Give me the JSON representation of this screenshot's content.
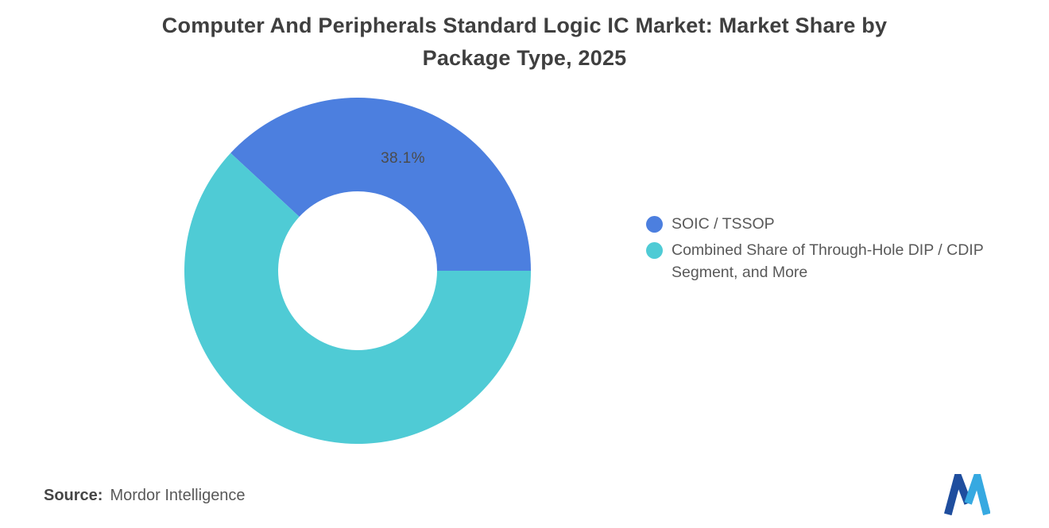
{
  "title": {
    "line1": "Computer And Peripherals Standard Logic IC Market: Market Share by",
    "line2": "Package Type, 2025"
  },
  "source": {
    "label": "Source:",
    "value": "Mordor Intelligence"
  },
  "chart_data": {
    "type": "pie",
    "subtype": "donut",
    "title": "Computer And Peripherals Standard Logic IC Market: Market Share by Package Type, 2025",
    "series": [
      {
        "name": "SOIC / TSSOP",
        "value": 38.1,
        "label": "38.1%",
        "color": "#4c7fdf"
      },
      {
        "name": "Combined Share of Through-Hole DIP / CDIP Segment, and More",
        "value": 61.9,
        "label": "",
        "color": "#4fcbd5"
      }
    ],
    "legend_position": "right",
    "rotation_deg": -47.16,
    "inner_radius_frac": 0.46,
    "data_labels_shown": [
      "38.1%"
    ]
  },
  "logo": {
    "name": "mordor-intelligence-logo",
    "color_left": "#1f4e9e",
    "color_right": "#36a9e1"
  }
}
